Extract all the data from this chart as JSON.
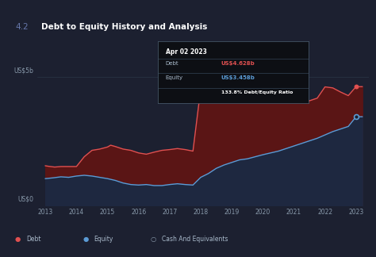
{
  "title": "Debt to Equity History and Analysis",
  "title_prefix": "4.2",
  "bg_color": "#1c2030",
  "plot_bg_color": "#1c2030",
  "ylabel_top": "US$5b",
  "ylabel_bottom": "US$0",
  "xlabel_years": [
    "2013",
    "2014",
    "2015",
    "2016",
    "2017",
    "2018",
    "2019",
    "2020",
    "2021",
    "2022",
    "2023"
  ],
  "legend": [
    {
      "label": "Debt",
      "color": "#e05050",
      "filled": true
    },
    {
      "label": "Equity",
      "color": "#5b9bd5",
      "filled": true
    },
    {
      "label": "Cash And Equivalents",
      "color": "#888888",
      "filled": false
    }
  ],
  "tooltip": {
    "date": "Apr 02 2023",
    "debt_label": "Debt",
    "debt_value": "US$4.628b",
    "equity_label": "Equity",
    "equity_value": "US$3.458b",
    "ratio": "133.8% Debt/Equity Ratio"
  },
  "debt": {
    "color": "#e05050",
    "fill_color": "#5a1515",
    "x": [
      2013.0,
      2013.1,
      2013.3,
      2013.5,
      2013.75,
      2014.0,
      2014.25,
      2014.5,
      2014.75,
      2015.0,
      2015.1,
      2015.25,
      2015.5,
      2015.75,
      2016.0,
      2016.25,
      2016.5,
      2016.75,
      2017.0,
      2017.25,
      2017.5,
      2017.75,
      2018.0,
      2018.1,
      2018.25,
      2018.5,
      2018.75,
      2019.0,
      2019.25,
      2019.5,
      2019.75,
      2020.0,
      2020.25,
      2020.5,
      2020.75,
      2021.0,
      2021.25,
      2021.5,
      2021.75,
      2022.0,
      2022.25,
      2022.5,
      2022.75,
      2023.0,
      2023.2
    ],
    "y": [
      1.55,
      1.53,
      1.5,
      1.52,
      1.52,
      1.52,
      1.9,
      2.15,
      2.2,
      2.28,
      2.35,
      2.3,
      2.2,
      2.15,
      2.05,
      2.0,
      2.08,
      2.15,
      2.18,
      2.22,
      2.18,
      2.12,
      4.55,
      4.52,
      4.4,
      4.2,
      4.05,
      4.25,
      4.55,
      4.22,
      4.08,
      4.75,
      4.7,
      4.55,
      4.38,
      4.18,
      4.12,
      4.08,
      4.18,
      4.62,
      4.58,
      4.42,
      4.28,
      4.628,
      4.628
    ]
  },
  "equity": {
    "color": "#5b9bd5",
    "fill_color": "#1e2840",
    "x": [
      2013.0,
      2013.25,
      2013.5,
      2013.75,
      2014.0,
      2014.25,
      2014.5,
      2014.75,
      2015.0,
      2015.25,
      2015.5,
      2015.75,
      2016.0,
      2016.25,
      2016.5,
      2016.75,
      2017.0,
      2017.25,
      2017.5,
      2017.75,
      2018.0,
      2018.25,
      2018.5,
      2018.75,
      2019.0,
      2019.25,
      2019.5,
      2019.75,
      2020.0,
      2020.25,
      2020.5,
      2020.75,
      2021.0,
      2021.25,
      2021.5,
      2021.75,
      2022.0,
      2022.25,
      2022.5,
      2022.75,
      2023.0,
      2023.2
    ],
    "y": [
      1.05,
      1.08,
      1.12,
      1.1,
      1.15,
      1.18,
      1.15,
      1.1,
      1.05,
      0.98,
      0.88,
      0.82,
      0.8,
      0.82,
      0.78,
      0.78,
      0.82,
      0.85,
      0.82,
      0.8,
      1.1,
      1.25,
      1.45,
      1.58,
      1.68,
      1.78,
      1.82,
      1.9,
      1.98,
      2.05,
      2.12,
      2.22,
      2.32,
      2.42,
      2.52,
      2.62,
      2.75,
      2.88,
      2.98,
      3.08,
      3.458,
      3.458
    ]
  },
  "ylim": [
    0,
    5.5
  ],
  "xlim": [
    2012.75,
    2023.4
  ]
}
